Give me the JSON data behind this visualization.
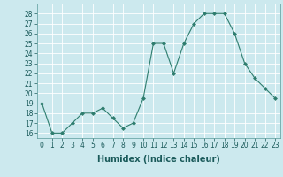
{
  "x": [
    0,
    1,
    2,
    3,
    4,
    5,
    6,
    7,
    8,
    9,
    10,
    11,
    12,
    13,
    14,
    15,
    16,
    17,
    18,
    19,
    20,
    21,
    22,
    23
  ],
  "y": [
    19,
    16,
    16,
    17,
    18,
    18,
    18.5,
    17.5,
    16.5,
    17,
    19.5,
    25,
    25,
    22,
    25,
    27,
    28,
    28,
    28,
    26,
    23,
    21.5,
    20.5,
    19.5
  ],
  "line_color": "#2e7d6e",
  "marker": "D",
  "marker_size": 2.0,
  "bg_color": "#cce9ee",
  "grid_color": "#ffffff",
  "xlabel": "Humidex (Indice chaleur)",
  "ylim": [
    15.5,
    29.0
  ],
  "yticks": [
    16,
    17,
    18,
    19,
    20,
    21,
    22,
    23,
    24,
    25,
    26,
    27,
    28
  ],
  "xticks": [
    0,
    1,
    2,
    3,
    4,
    5,
    6,
    7,
    8,
    9,
    10,
    11,
    12,
    13,
    14,
    15,
    16,
    17,
    18,
    19,
    20,
    21,
    22,
    23
  ],
  "tick_fontsize": 5.5,
  "label_fontsize": 7.0
}
